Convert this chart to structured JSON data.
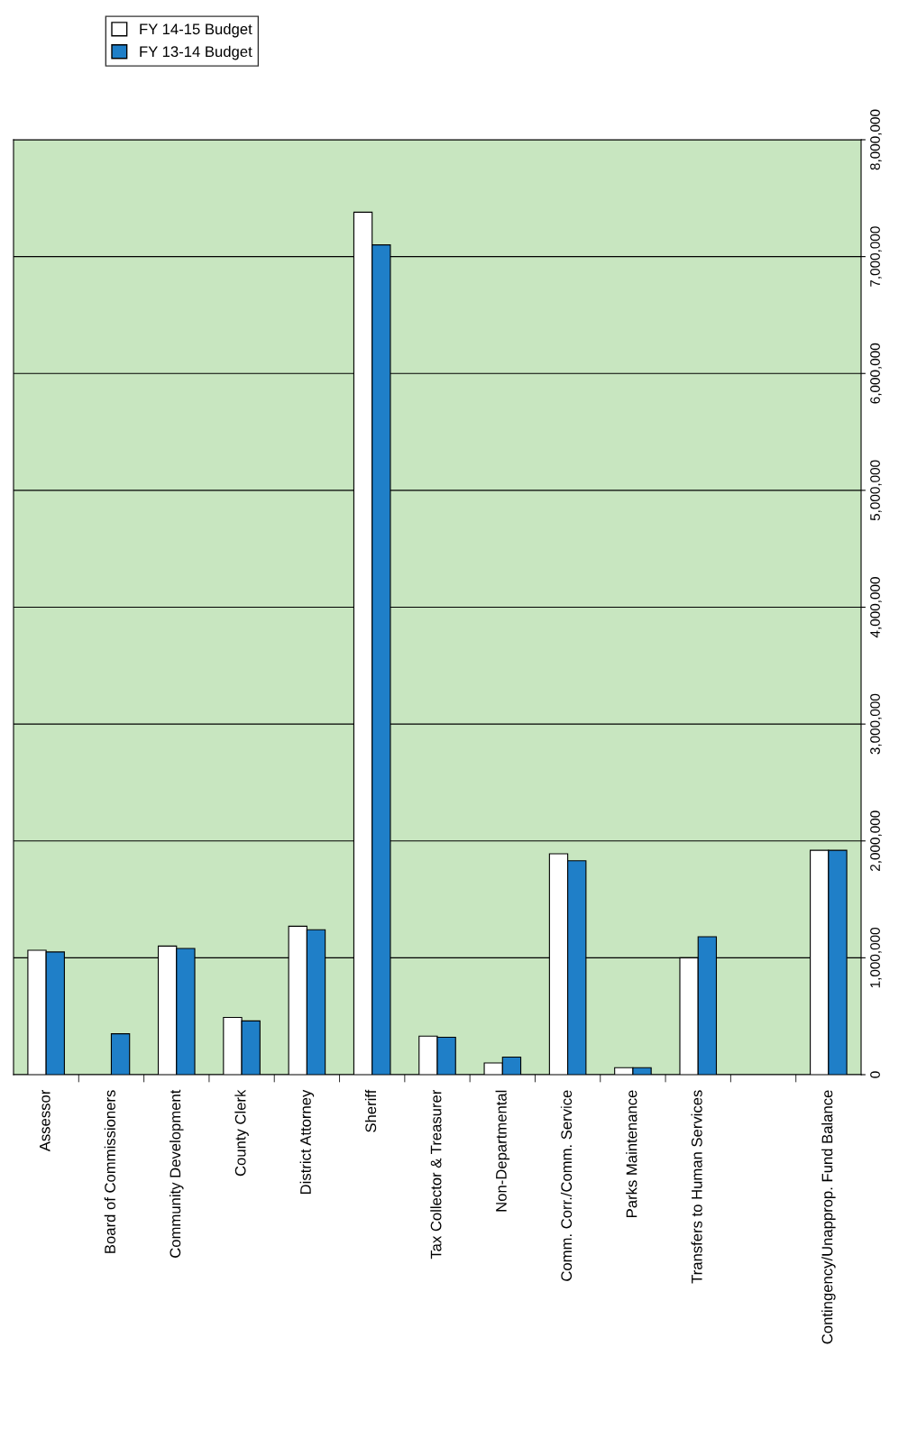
{
  "chart_data": {
    "type": "bar",
    "categories": [
      "Assessor",
      "Board of Commissioners",
      "Community Development",
      "County Clerk",
      "District Attorney",
      "Sheriff",
      "Tax Collector & Treasurer",
      "Non-Departmental",
      "Comm. Corr./Comm. Service",
      "Parks Maintenance",
      "Transfers to Human Services",
      null,
      "Contingency/Unapprop. Fund Balance"
    ],
    "series": [
      {
        "name": "FY 14-15 Budget",
        "color": "#ffffff",
        "values": [
          1065000,
          null,
          1100000,
          490000,
          1270000,
          7380000,
          330000,
          100000,
          1890000,
          60000,
          1000000,
          null,
          1920000
        ]
      },
      {
        "name": "FY 13-14 Budget",
        "color": "#1f7fc8",
        "values": [
          1050000,
          350000,
          1080000,
          460000,
          1240000,
          7100000,
          320000,
          150000,
          1830000,
          60000,
          1180000,
          null,
          1920000
        ]
      }
    ],
    "ylim": [
      0,
      8000000
    ],
    "yticks": [
      0,
      {
        "value": 1000000,
        "label": "1,000,000"
      },
      {
        "value": 2000000,
        "label": "2,000,000"
      },
      {
        "value": 3000000,
        "label": "3,000,000"
      },
      {
        "value": 4000000,
        "label": "4,000,000"
      },
      {
        "value": 5000000,
        "label": "5,000,000"
      },
      {
        "value": 6000000,
        "label": "6,000,000"
      },
      {
        "value": 7000000,
        "label": "7,000,000"
      },
      {
        "value": 8000000,
        "label": "8,000,000"
      }
    ],
    "grid": "y",
    "legend": "top left"
  }
}
